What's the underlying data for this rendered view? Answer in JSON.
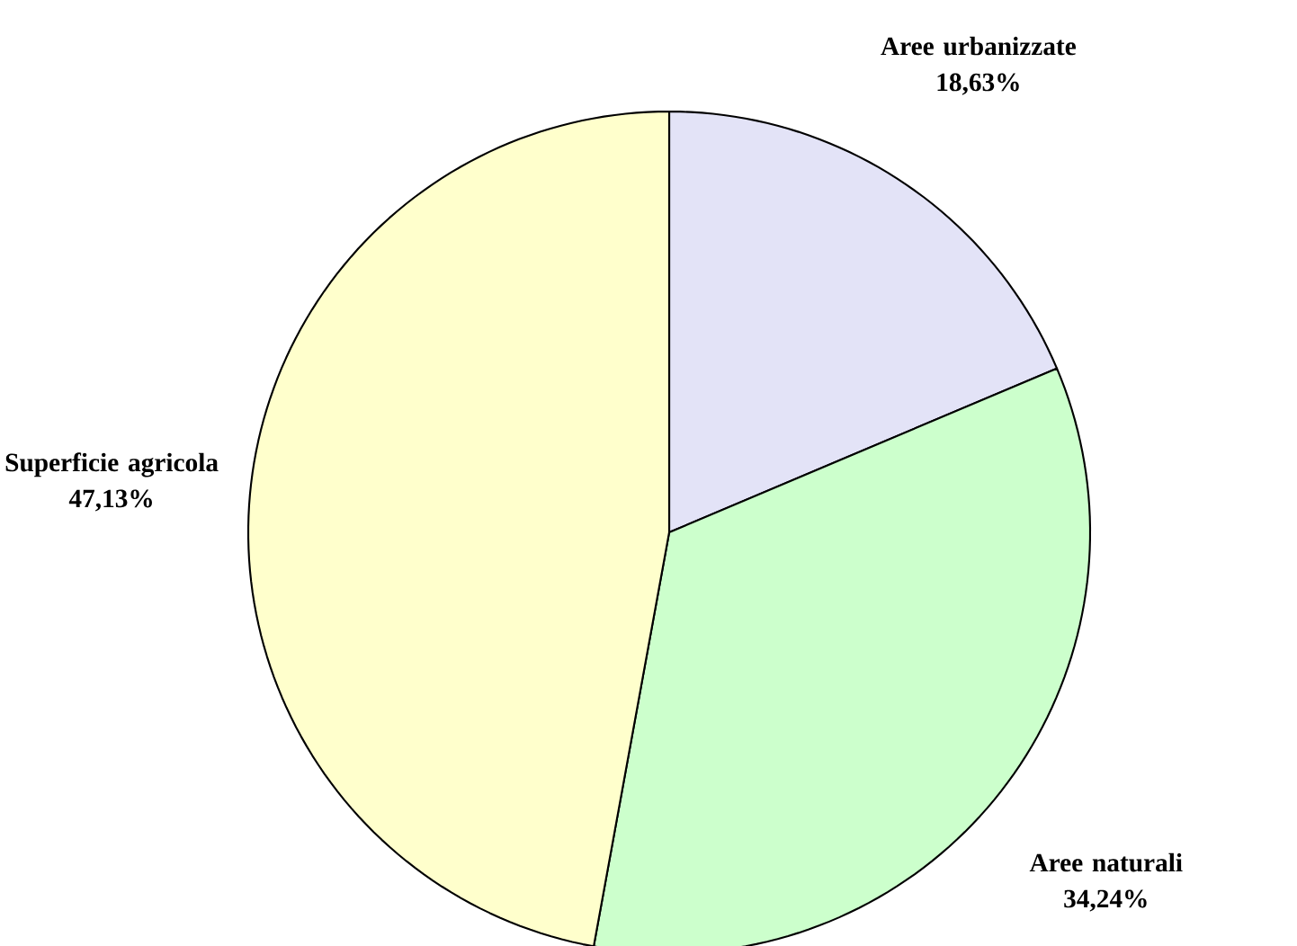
{
  "chart_data": {
    "type": "pie",
    "categories": [
      "Aree urbanizzate",
      "Aree naturali",
      "Superficie agricola"
    ],
    "values": [
      18.63,
      34.24,
      47.13
    ],
    "colors": [
      "#e3e3f7",
      "#ccffcc",
      "#ffffcc"
    ],
    "value_labels": [
      "18,63%",
      "34,24%",
      "47,13%"
    ]
  }
}
